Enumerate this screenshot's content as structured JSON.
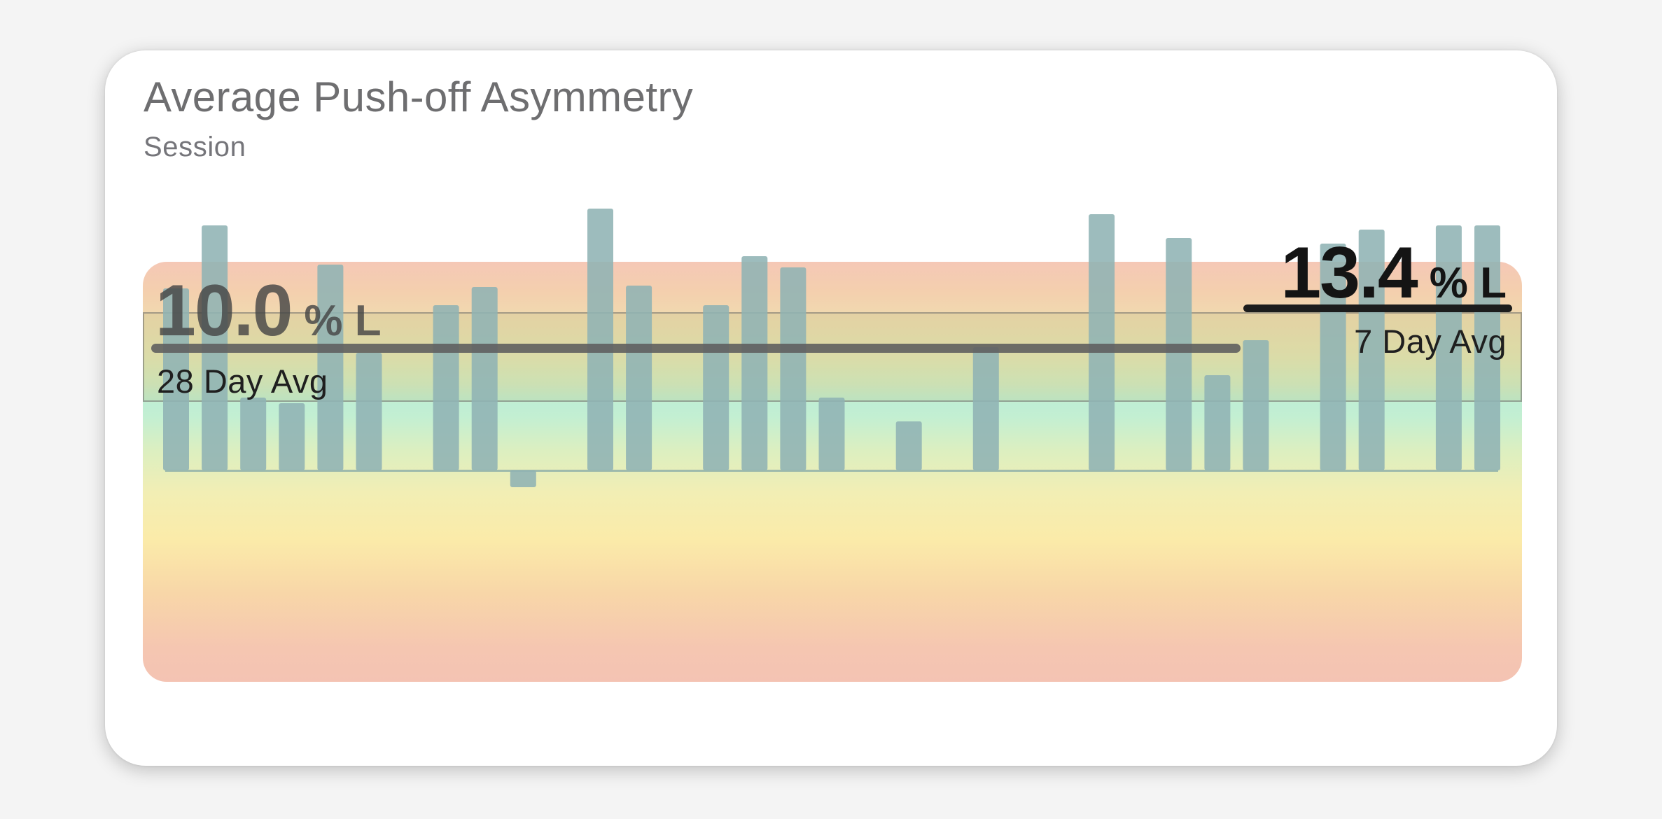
{
  "header": {
    "title": "Average Push-off Asymmetry",
    "subtitle": "Session"
  },
  "averages": {
    "avg_28_day": {
      "value": "10.0",
      "unit": "% L",
      "label": "28 Day Avg"
    },
    "avg_7_day": {
      "value": "13.4",
      "unit": "% L",
      "label": "7 Day Avg"
    }
  },
  "colors": {
    "bar": "#8fb3b4",
    "zero_line": "#7fa4a6",
    "avg28_line": "#5f5f5f",
    "avg7_line": "#1c1c1c"
  },
  "chart_data": {
    "type": "bar",
    "title": "Average Push-off Asymmetry",
    "subtitle": "Session",
    "xlabel": "",
    "ylabel": "",
    "unit": "% L",
    "ylim": [
      -20,
      23.5
    ],
    "grid": false,
    "values": [
      13,
      17.5,
      5.2,
      4.8,
      14.7,
      8.4,
      null,
      11.8,
      13.1,
      -1.2,
      null,
      18.7,
      13.2,
      null,
      11.8,
      15.3,
      14.5,
      5.2,
      null,
      3.5,
      null,
      8.8,
      null,
      null,
      18.3,
      null,
      16.6,
      6.8,
      9.3,
      null,
      16.2,
      17.2,
      null,
      17.5,
      17.5
    ]
  }
}
